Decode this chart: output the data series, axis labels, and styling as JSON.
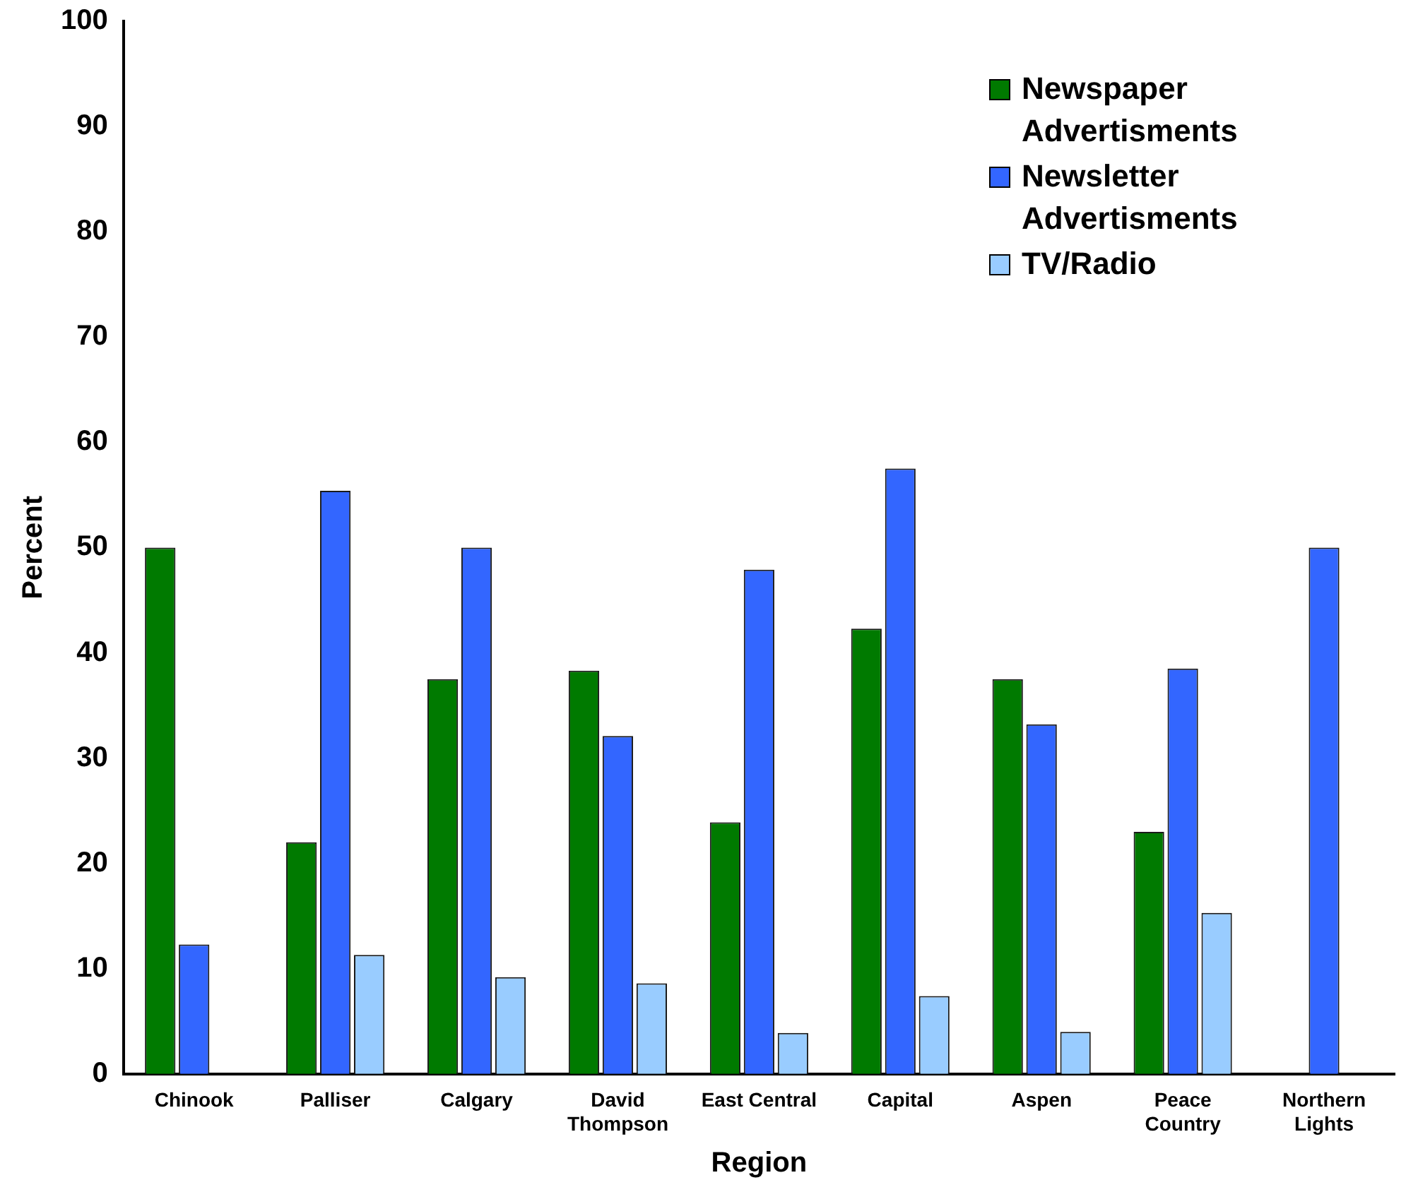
{
  "chart_data": {
    "type": "bar",
    "xlabel": "Region",
    "ylabel": "Percent",
    "categories": [
      "Chinook",
      "Palliser",
      "Calgary",
      "David Thompson",
      "East Central",
      "Capital",
      "Aspen",
      "Peace Country",
      "Northern Lights"
    ],
    "series": [
      {
        "name": "Newspaper Advertisments",
        "color": "#007a00",
        "values": [
          50,
          22,
          37.5,
          38.3,
          23.9,
          42.3,
          37.5,
          23,
          0
        ]
      },
      {
        "name": "Newsletter Advertisments",
        "color": "#3366ff",
        "values": [
          12.3,
          55.4,
          50,
          32.1,
          47.9,
          57.5,
          33.2,
          38.5,
          50
        ]
      },
      {
        "name": "TV/Radio",
        "color": "#99ccff",
        "values": [
          0,
          11.3,
          9.2,
          8.6,
          3.9,
          7.4,
          4,
          15.3,
          0
        ]
      }
    ],
    "ylim": [
      0,
      100
    ],
    "yticks": [
      0,
      10,
      20,
      30,
      40,
      50,
      60,
      70,
      80,
      90,
      100
    ],
    "grid": false,
    "legend": "top right"
  }
}
